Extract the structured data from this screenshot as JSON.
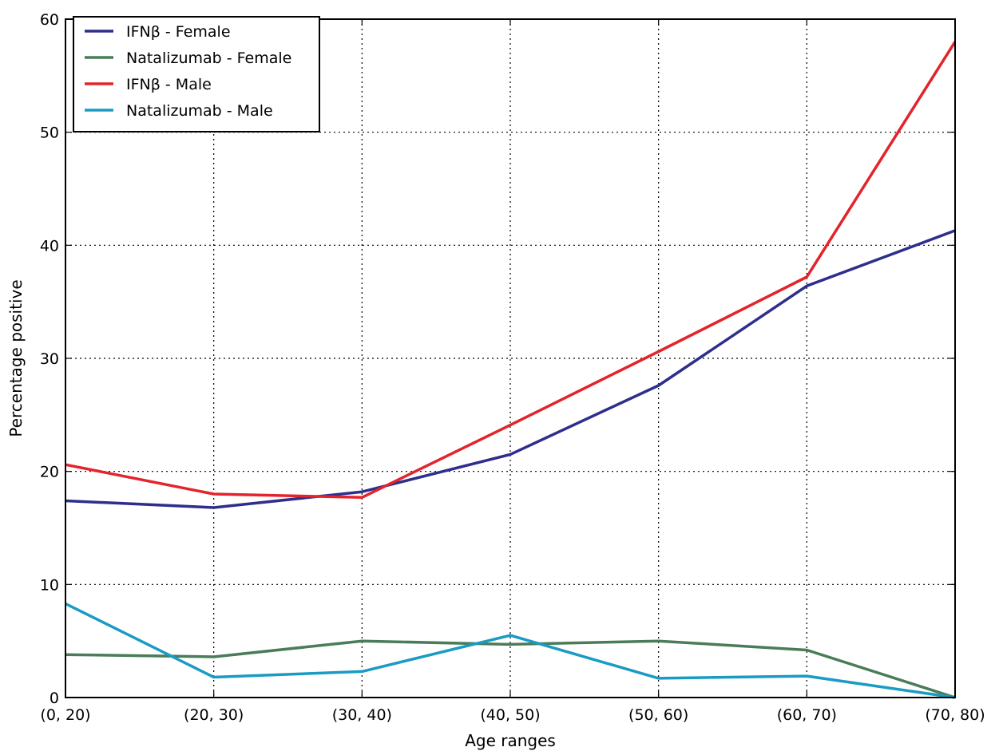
{
  "chart_data": {
    "type": "line",
    "title": "",
    "xlabel": "Age ranges",
    "ylabel": "Percentage positive",
    "categories": [
      "(0, 20)",
      "(20, 30)",
      "(30, 40)",
      "(40, 50)",
      "(50, 60)",
      "(60, 70)",
      "(70, 80)"
    ],
    "ylim": [
      0,
      60
    ],
    "yticks": [
      "0",
      "10",
      "20",
      "30",
      "40",
      "50",
      "60"
    ],
    "grid": true,
    "legend_position": "top-left",
    "series": [
      {
        "name": "IFNβ - Female",
        "color": "#2e2e8c",
        "values": [
          17.4,
          16.8,
          18.2,
          21.5,
          27.6,
          36.4,
          41.3
        ]
      },
      {
        "name": "Natalizumab - Female",
        "color": "#4a7c59",
        "values": [
          3.8,
          3.6,
          5.0,
          4.7,
          5.0,
          4.2,
          0.0
        ]
      },
      {
        "name": "IFNβ - Male",
        "color": "#e3242b",
        "values": [
          20.6,
          18.0,
          17.7,
          24.1,
          30.6,
          37.2,
          58.0
        ]
      },
      {
        "name": "Natalizumab - Male",
        "color": "#1a9bc4",
        "values": [
          8.3,
          1.8,
          2.3,
          5.5,
          1.7,
          1.9,
          0.0
        ]
      }
    ]
  }
}
